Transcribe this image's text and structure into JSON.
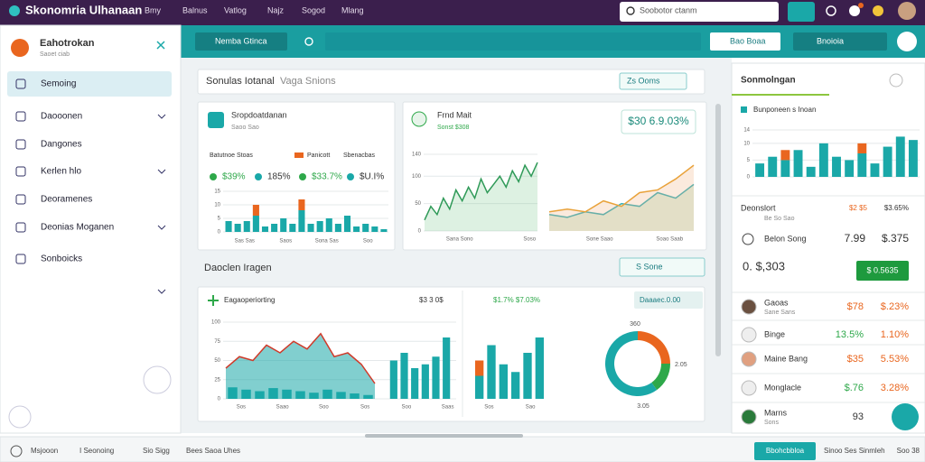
{
  "topbar": {
    "app_title": "Skonomria Ulhanaan",
    "nav": [
      "Bmy",
      "Balnus",
      "Vatlog",
      "Najz",
      "Sogod",
      "Mlang"
    ],
    "search_placeholder": "Soobotor ctanm"
  },
  "sidebar": {
    "title": "Eahotrokan",
    "subtitle": "Saoet ciab",
    "items": [
      "Semoing",
      "Daooonen",
      "Dangones",
      "Kerlen hlo",
      "Deoramenes",
      "Deonias Moganen",
      "Sonboicks"
    ]
  },
  "toolbar": {
    "search_button": "Nemba Gtinca",
    "buttons": [
      "Bao Boaa",
      "Bnoioia"
    ]
  },
  "section1": {
    "title": "Sonulas Iotanal",
    "subtitle": "Vaga Snions",
    "dropdown": "Zs Ooms"
  },
  "card1": {
    "title": "Sropdoatdanan",
    "subtitle": "Saoo Sao",
    "legend": [
      "Batutnoe Stoas",
      "Panicott",
      "Sbenacbas"
    ],
    "stats": [
      "$39%",
      "185%",
      "$33.7%",
      "$U.I%"
    ],
    "ylim": [
      0,
      15
    ],
    "yticks": [
      0,
      5,
      10,
      15
    ],
    "teal": [
      4,
      3,
      4,
      6,
      2,
      3,
      5,
      3,
      8,
      3,
      4,
      5,
      3,
      6,
      2,
      3,
      2,
      1
    ],
    "orange": [
      0,
      0,
      0,
      4,
      0,
      0,
      0,
      0,
      4,
      0,
      0,
      0,
      0,
      0,
      0,
      0,
      0,
      0
    ],
    "xlabels": [
      "Sas Sas",
      "Saos",
      "Sona Sas",
      "Soo"
    ]
  },
  "card2": {
    "title": "Frnd Mait",
    "subtitle": "Sonst $308",
    "badge": "$30 6.9.03%",
    "ylim": [
      0,
      140
    ],
    "yticks": [
      0,
      50,
      100,
      140
    ],
    "line": [
      20,
      45,
      30,
      60,
      40,
      75,
      55,
      80,
      60,
      95,
      70,
      85,
      100,
      80,
      110,
      90,
      120,
      100,
      125
    ],
    "green": [
      30,
      25,
      35,
      30,
      50,
      45,
      70,
      60,
      85
    ],
    "red": [
      35,
      40,
      35,
      55,
      45,
      70,
      75,
      95,
      120
    ],
    "xlabels": [
      "Sana Sono",
      "Soso",
      "Sone Saao",
      "Soao Saab"
    ]
  },
  "section2": {
    "title": "Daoclen Iragen",
    "dropdown": "S Sone"
  },
  "card3": {
    "title": "Eagaoperiorting",
    "stat_left": "$3 3 0$",
    "stat_right": "$1.7% $7.03%",
    "dropdown": "Daaaec.0.00",
    "ylim": [
      0,
      100
    ],
    "yticks": [
      0,
      25,
      50,
      75,
      100
    ],
    "area": [
      40,
      55,
      50,
      70,
      60,
      75,
      65,
      85,
      55,
      60,
      45,
      20
    ],
    "bars": [
      15,
      12,
      10,
      14,
      12,
      10,
      8,
      12,
      9,
      7,
      5
    ],
    "bars2": [
      50,
      60,
      40,
      45,
      55,
      80
    ],
    "bars3_teal": [
      30,
      70,
      45,
      35,
      60,
      80
    ],
    "bars3_orange": [
      20,
      0,
      0,
      0,
      0,
      0
    ],
    "donut": [
      25,
      15,
      60
    ],
    "donut_top": "360",
    "donut_right": "2.05",
    "donut_bottom": "3.05",
    "xlabels": [
      "Sos",
      "Saao",
      "Soo",
      "Sos",
      "Soo",
      "Saas",
      "Sos",
      "Sao"
    ]
  },
  "right": {
    "title": "Sonmolngan",
    "legend": "Bunponeen s Inoan",
    "teal": [
      4,
      6,
      5,
      8,
      3,
      10,
      6,
      5,
      7,
      4,
      9,
      12,
      11
    ],
    "orange": [
      0,
      0,
      3,
      0,
      0,
      0,
      0,
      0,
      3,
      0,
      0,
      0,
      0
    ],
    "ylim": [
      0,
      14
    ],
    "yticks": [
      0,
      5,
      10,
      14
    ],
    "summary_label": "Deonslort",
    "summary_sub": "Be So Sao",
    "summary_v1": "$2 $5",
    "summary_v2": "$3.65%",
    "row_label": "Belon Song",
    "row_v1": "7.99",
    "row_v2": "$.375",
    "big_value": "0. $,303",
    "big_button": "$ 0.5635",
    "list": [
      {
        "name": "Gaoas",
        "sub": "Sane Sans",
        "v1": "$78",
        "v2": "$.23%"
      },
      {
        "name": "Binge",
        "sub": "",
        "v1": "13.5%",
        "v2": "1.10%"
      },
      {
        "name": "Maine Bang",
        "sub": "",
        "v1": "$35",
        "v2": "5.53%"
      },
      {
        "name": "Monglacle",
        "sub": "",
        "v1": "$.76",
        "v2": "3.28%"
      },
      {
        "name": "Marns",
        "sub": "Sons",
        "v1": "93",
        "v2": ""
      }
    ]
  },
  "statusbar": {
    "items": [
      "Msjooon",
      "I Seonoing",
      "Sio Sigg",
      "Bees Saoa Uhes"
    ],
    "button": "Bbohcbbloa",
    "right": "Sinoo Ses Sinmleh",
    "right2": "Soo 38"
  }
}
